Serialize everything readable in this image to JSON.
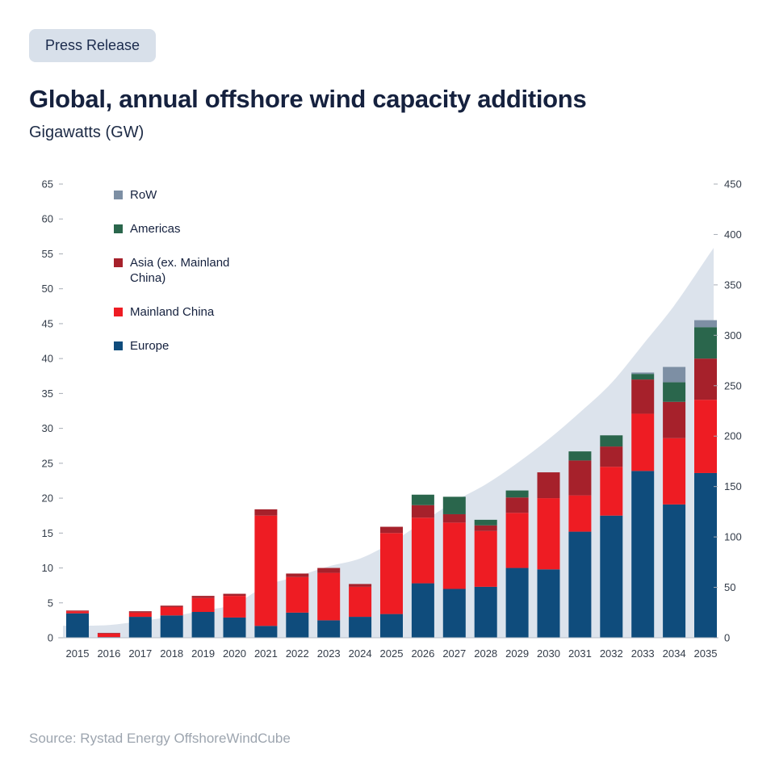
{
  "badge": {
    "label": "Press Release"
  },
  "header": {
    "title": "Global, annual offshore wind capacity additions",
    "subtitle": "Gigawatts (GW)"
  },
  "source": {
    "text": "Source: Rystad Energy OffshoreWindCube"
  },
  "chart_data": {
    "type": "bar",
    "stacked": true,
    "title": "Global, annual offshore wind capacity additions",
    "unit_label": "Gigawatts (GW)",
    "grid": false,
    "legend_position": "top-left",
    "categories": [
      "2015",
      "2016",
      "2017",
      "2018",
      "2019",
      "2020",
      "2021",
      "2022",
      "2023",
      "2024",
      "2025",
      "2026",
      "2027",
      "2028",
      "2029",
      "2030",
      "2031",
      "2032",
      "2033",
      "2034",
      "2035"
    ],
    "series": [
      {
        "name": "Europe",
        "color": "#0f4c7c",
        "values": [
          3.5,
          0.1,
          3.0,
          3.2,
          3.7,
          2.9,
          1.7,
          3.6,
          2.5,
          3.0,
          3.4,
          7.8,
          7.0,
          7.3,
          10.0,
          9.8,
          15.2,
          17.5,
          23.9,
          19.1,
          23.6
        ]
      },
      {
        "name": "Mainland China",
        "color": "#ee1c23",
        "values": [
          0.3,
          0.5,
          0.6,
          1.2,
          2.0,
          3.1,
          15.8,
          5.1,
          6.8,
          4.3,
          11.6,
          9.4,
          9.5,
          8.0,
          7.9,
          10.2,
          5.2,
          7.0,
          8.2,
          9.5,
          10.5
        ]
      },
      {
        "name": "Asia (ex. Mainland China)",
        "color": "#a6212b",
        "values": [
          0.1,
          0.1,
          0.2,
          0.2,
          0.3,
          0.3,
          0.9,
          0.5,
          0.7,
          0.4,
          0.9,
          1.8,
          1.2,
          0.8,
          2.2,
          3.7,
          5.0,
          2.9,
          4.9,
          5.2,
          5.9
        ]
      },
      {
        "name": "Americas",
        "color": "#2a664c",
        "values": [
          0,
          0,
          0,
          0,
          0,
          0,
          0,
          0,
          0,
          0,
          0,
          1.5,
          2.5,
          0.8,
          1.0,
          0,
          1.3,
          1.6,
          0.8,
          2.8,
          4.5
        ]
      },
      {
        "name": "RoW",
        "color": "#7d8fa4",
        "values": [
          0,
          0,
          0,
          0,
          0,
          0,
          0,
          0,
          0,
          0,
          0,
          0,
          0,
          0,
          0,
          0,
          0,
          0,
          0.2,
          2.2,
          1.0
        ]
      }
    ],
    "legend": [
      {
        "label": "RoW",
        "color": "#7d8fa4"
      },
      {
        "label": "Americas",
        "color": "#2a664c"
      },
      {
        "label": "Asia (ex. Mainland China)",
        "color": "#a6212b"
      },
      {
        "label": "Mainland China",
        "color": "#ee1c23"
      },
      {
        "label": "Europe",
        "color": "#0f4c7c"
      }
    ],
    "cumulative_area": {
      "axis": "right",
      "color": "#dce3ec",
      "values": [
        11.9,
        12.6,
        16.4,
        21.0,
        27.0,
        33.3,
        51.7,
        60.9,
        70.9,
        78.6,
        94.5,
        115.0,
        135.2,
        152.1,
        173.2,
        196.9,
        223.6,
        252.6,
        290.6,
        329.4,
        374.9
      ]
    },
    "axes": {
      "left": {
        "min": 0,
        "max": 65,
        "step": 5
      },
      "right": {
        "min": 0,
        "max": 450,
        "step": 50
      }
    }
  }
}
